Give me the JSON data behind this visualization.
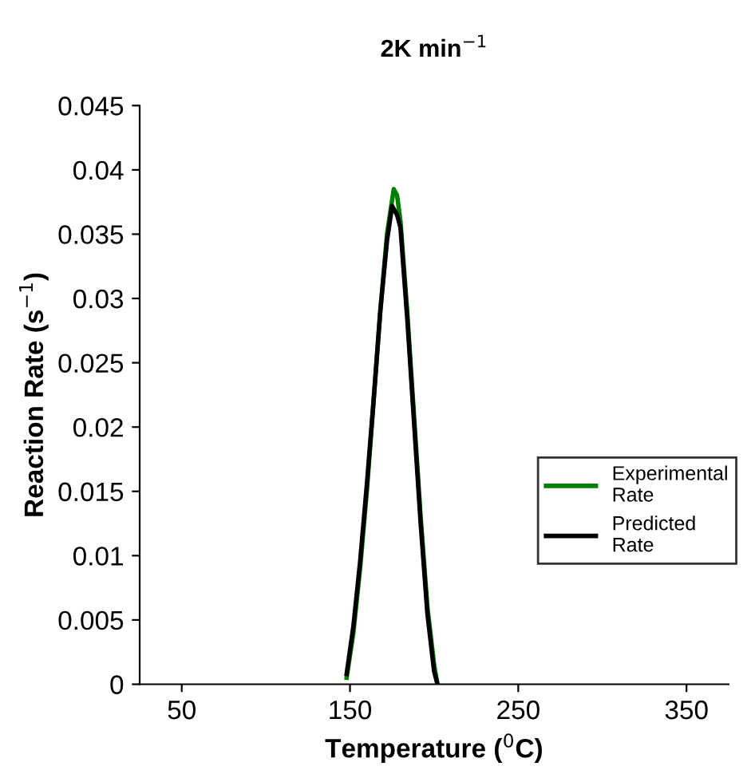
{
  "chart_data": {
    "type": "line",
    "title": "2K min$^{−1}$",
    "xlabel": "Temperature ($^{0}$C)",
    "ylabel": "Reaction Rate (s$^{−1}$)",
    "xlim": [
      25,
      375
    ],
    "xticks": [
      50,
      150,
      250,
      350
    ],
    "ylim": [
      0,
      0.045
    ],
    "yticks": [
      0,
      0.005,
      0.01,
      0.015,
      0.02,
      0.025,
      0.03,
      0.035,
      0.04,
      0.045
    ],
    "legend": "right",
    "grid": false,
    "series": [
      {
        "name": "Experimental Rate",
        "color": "#008000",
        "x": [
          148,
          152,
          156,
          160,
          164,
          168,
          172,
          176,
          178,
          180,
          184,
          188,
          192,
          196,
          200,
          202
        ],
        "values": [
          0.0005,
          0.004,
          0.009,
          0.015,
          0.022,
          0.029,
          0.035,
          0.0385,
          0.038,
          0.036,
          0.029,
          0.021,
          0.013,
          0.006,
          0.0015,
          0
        ]
      },
      {
        "name": "Predicted Rate",
        "color": "#000000",
        "x": [
          148,
          152,
          156,
          160,
          164,
          168,
          172,
          175,
          178,
          180,
          184,
          188,
          192,
          196,
          200,
          202
        ],
        "values": [
          0.0008,
          0.0045,
          0.0095,
          0.0155,
          0.022,
          0.029,
          0.0345,
          0.0372,
          0.0365,
          0.0355,
          0.0285,
          0.0205,
          0.0125,
          0.0055,
          0.001,
          0
        ]
      }
    ]
  }
}
